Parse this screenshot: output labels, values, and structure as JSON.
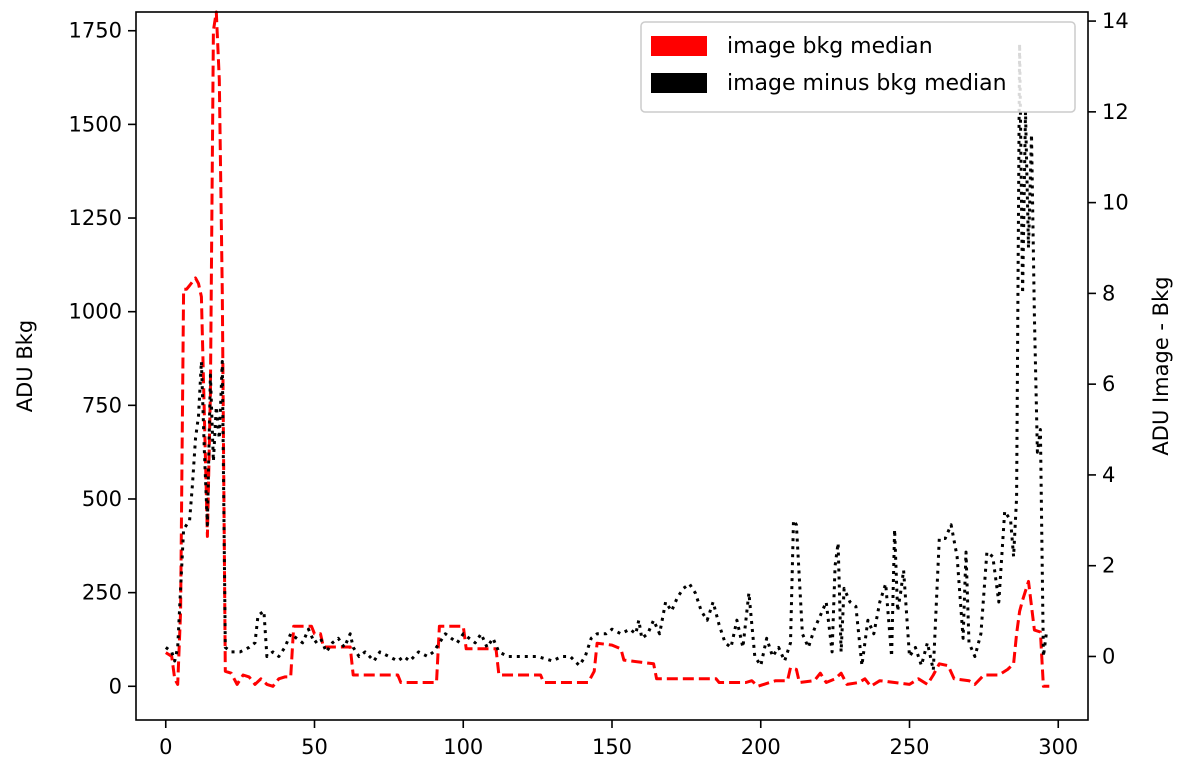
{
  "chart_data": {
    "type": "line",
    "title": "",
    "xlabel": "",
    "xlim": [
      -10,
      310
    ],
    "x_ticks": [
      0,
      50,
      100,
      150,
      200,
      250,
      300
    ],
    "left_axis": {
      "label": "ADU Bkg",
      "ylim": [
        -90,
        1800
      ],
      "ticks": [
        0,
        250,
        500,
        750,
        1000,
        1250,
        1500,
        1750
      ]
    },
    "right_axis": {
      "label": "ADU Image - Bkg",
      "ylim": [
        -1.4,
        14.2
      ],
      "ticks": [
        0,
        2,
        4,
        6,
        8,
        10,
        12,
        14
      ]
    },
    "legend": {
      "placement": "top-right"
    },
    "series": [
      {
        "name": "image bkg median",
        "axis": "left",
        "color": "#ff0000",
        "style": "dashed",
        "points": [
          [
            0,
            90
          ],
          [
            2,
            80
          ],
          [
            3,
            20
          ],
          [
            4,
            5
          ],
          [
            5,
            200
          ],
          [
            6,
            1060
          ],
          [
            7,
            1060
          ],
          [
            8,
            1070
          ],
          [
            9,
            1080
          ],
          [
            10,
            1090
          ],
          [
            11,
            1075
          ],
          [
            12,
            1040
          ],
          [
            13,
            720
          ],
          [
            14,
            400
          ],
          [
            15,
            780
          ],
          [
            16,
            1750
          ],
          [
            17,
            1800
          ],
          [
            18,
            1620
          ],
          [
            19,
            1050
          ],
          [
            20,
            40
          ],
          [
            22,
            35
          ],
          [
            24,
            5
          ],
          [
            26,
            30
          ],
          [
            28,
            25
          ],
          [
            30,
            5
          ],
          [
            32,
            20
          ],
          [
            34,
            5
          ],
          [
            36,
            0
          ],
          [
            38,
            20
          ],
          [
            40,
            25
          ],
          [
            42,
            25
          ],
          [
            43,
            160
          ],
          [
            49,
            160
          ],
          [
            50,
            140
          ],
          [
            52,
            140
          ],
          [
            53,
            105
          ],
          [
            62,
            105
          ],
          [
            63,
            30
          ],
          [
            78,
            30
          ],
          [
            79,
            10
          ],
          [
            91,
            10
          ],
          [
            92,
            160
          ],
          [
            100,
            160
          ],
          [
            101,
            100
          ],
          [
            111,
            100
          ],
          [
            112,
            30
          ],
          [
            126,
            30
          ],
          [
            127,
            10
          ],
          [
            142,
            10
          ],
          [
            144,
            40
          ],
          [
            145,
            115
          ],
          [
            150,
            110
          ],
          [
            153,
            100
          ],
          [
            154,
            70
          ],
          [
            164,
            60
          ],
          [
            165,
            20
          ],
          [
            185,
            20
          ],
          [
            186,
            10
          ],
          [
            195,
            10
          ],
          [
            197,
            15
          ],
          [
            199,
            0
          ],
          [
            201,
            5
          ],
          [
            205,
            15
          ],
          [
            209,
            15
          ],
          [
            210,
            50
          ],
          [
            212,
            45
          ],
          [
            213,
            10
          ],
          [
            218,
            15
          ],
          [
            220,
            35
          ],
          [
            222,
            10
          ],
          [
            225,
            20
          ],
          [
            227,
            35
          ],
          [
            229,
            5
          ],
          [
            233,
            10
          ],
          [
            235,
            20
          ],
          [
            237,
            0
          ],
          [
            240,
            15
          ],
          [
            245,
            10
          ],
          [
            250,
            5
          ],
          [
            253,
            20
          ],
          [
            256,
            5
          ],
          [
            258,
            30
          ],
          [
            260,
            60
          ],
          [
            263,
            55
          ],
          [
            265,
            20
          ],
          [
            270,
            15
          ],
          [
            272,
            5
          ],
          [
            275,
            30
          ],
          [
            280,
            30
          ],
          [
            283,
            45
          ],
          [
            285,
            60
          ],
          [
            286,
            140
          ],
          [
            287,
            200
          ],
          [
            288,
            230
          ],
          [
            290,
            280
          ],
          [
            292,
            150
          ],
          [
            294,
            145
          ],
          [
            295,
            0
          ],
          [
            297,
            0
          ]
        ]
      },
      {
        "name": "image minus bkg median",
        "axis": "right",
        "color": "#000000",
        "style": "dotted",
        "points": [
          [
            0,
            0.2
          ],
          [
            2,
            0.1
          ],
          [
            3,
            -0.1
          ],
          [
            4,
            0.2
          ],
          [
            5,
            1.5
          ],
          [
            6,
            2.8
          ],
          [
            8,
            3.0
          ],
          [
            9,
            3.8
          ],
          [
            10,
            4.8
          ],
          [
            11,
            5.3
          ],
          [
            12,
            6.5
          ],
          [
            13,
            4.5
          ],
          [
            14,
            2.9
          ],
          [
            15,
            6.2
          ],
          [
            16,
            4.3
          ],
          [
            17,
            5.5
          ],
          [
            18,
            4.8
          ],
          [
            19,
            6.5
          ],
          [
            20,
            0.2
          ],
          [
            22,
            0.1
          ],
          [
            25,
            0.1
          ],
          [
            28,
            0.2
          ],
          [
            30,
            0.3
          ],
          [
            31,
            0.9
          ],
          [
            33,
            1.0
          ],
          [
            34,
            0.0
          ],
          [
            36,
            0.1
          ],
          [
            38,
            0.0
          ],
          [
            40,
            0.2
          ],
          [
            42,
            0.5
          ],
          [
            44,
            0.4
          ],
          [
            46,
            0.3
          ],
          [
            48,
            0.6
          ],
          [
            50,
            0.3
          ],
          [
            52,
            0.4
          ],
          [
            54,
            0.1
          ],
          [
            56,
            0.3
          ],
          [
            58,
            0.4
          ],
          [
            60,
            0.2
          ],
          [
            62,
            0.5
          ],
          [
            63,
            0.2
          ],
          [
            65,
            0.0
          ],
          [
            67,
            0.1
          ],
          [
            70,
            -0.1
          ],
          [
            72,
            0.1
          ],
          [
            75,
            0.0
          ],
          [
            78,
            -0.1
          ],
          [
            80,
            0.0
          ],
          [
            82,
            -0.1
          ],
          [
            85,
            0.1
          ],
          [
            88,
            0.0
          ],
          [
            90,
            0.1
          ],
          [
            92,
            0.3
          ],
          [
            94,
            0.5
          ],
          [
            96,
            0.4
          ],
          [
            98,
            0.3
          ],
          [
            100,
            0.5
          ],
          [
            102,
            0.4
          ],
          [
            104,
            0.3
          ],
          [
            106,
            0.5
          ],
          [
            108,
            0.2
          ],
          [
            110,
            0.4
          ],
          [
            112,
            0.1
          ],
          [
            115,
            0.0
          ],
          [
            120,
            0.0
          ],
          [
            125,
            0.0
          ],
          [
            130,
            -0.1
          ],
          [
            133,
            0.0
          ],
          [
            136,
            0.0
          ],
          [
            139,
            -0.2
          ],
          [
            141,
            0.0
          ],
          [
            143,
            0.4
          ],
          [
            145,
            0.5
          ],
          [
            148,
            0.5
          ],
          [
            150,
            0.6
          ],
          [
            153,
            0.5
          ],
          [
            156,
            0.6
          ],
          [
            158,
            0.5
          ],
          [
            159,
            0.8
          ],
          [
            160,
            0.4
          ],
          [
            162,
            0.5
          ],
          [
            164,
            0.8
          ],
          [
            166,
            0.5
          ],
          [
            168,
            1.2
          ],
          [
            170,
            1.0
          ],
          [
            172,
            1.3
          ],
          [
            174,
            1.5
          ],
          [
            176,
            1.6
          ],
          [
            178,
            1.4
          ],
          [
            180,
            1.0
          ],
          [
            182,
            0.8
          ],
          [
            184,
            1.2
          ],
          [
            186,
            0.7
          ],
          [
            188,
            0.3
          ],
          [
            190,
            0.2
          ],
          [
            192,
            0.8
          ],
          [
            194,
            0.2
          ],
          [
            196,
            1.4
          ],
          [
            198,
            0.0
          ],
          [
            200,
            -0.2
          ],
          [
            202,
            0.4
          ],
          [
            204,
            0.0
          ],
          [
            206,
            0.2
          ],
          [
            208,
            -0.1
          ],
          [
            210,
            0.3
          ],
          [
            211,
            3.0
          ],
          [
            212,
            2.9
          ],
          [
            214,
            0.5
          ],
          [
            216,
            0.2
          ],
          [
            218,
            0.6
          ],
          [
            220,
            0.9
          ],
          [
            222,
            1.2
          ],
          [
            224,
            0.1
          ],
          [
            225,
            2.0
          ],
          [
            226,
            2.5
          ],
          [
            227,
            0.1
          ],
          [
            228,
            1.5
          ],
          [
            230,
            1.2
          ],
          [
            232,
            1.1
          ],
          [
            234,
            -0.2
          ],
          [
            236,
            0.8
          ],
          [
            238,
            0.5
          ],
          [
            240,
            1.2
          ],
          [
            242,
            1.6
          ],
          [
            244,
            0.0
          ],
          [
            245,
            2.8
          ],
          [
            246,
            1.0
          ],
          [
            247,
            1.4
          ],
          [
            248,
            1.9
          ],
          [
            250,
            0.0
          ],
          [
            252,
            0.2
          ],
          [
            254,
            -0.2
          ],
          [
            256,
            0.3
          ],
          [
            258,
            -0.3
          ],
          [
            260,
            2.6
          ],
          [
            262,
            2.6
          ],
          [
            264,
            2.9
          ],
          [
            266,
            2.2
          ],
          [
            268,
            0.4
          ],
          [
            269,
            2.3
          ],
          [
            270,
            0.3
          ],
          [
            272,
            0.0
          ],
          [
            274,
            0.5
          ],
          [
            276,
            2.3
          ],
          [
            278,
            2.2
          ],
          [
            280,
            1.2
          ],
          [
            282,
            3.2
          ],
          [
            284,
            3.0
          ],
          [
            285,
            2.2
          ],
          [
            286,
            3.5
          ],
          [
            287,
            13.5
          ],
          [
            288,
            8.0
          ],
          [
            289,
            12.0
          ],
          [
            290,
            9.0
          ],
          [
            291,
            11.5
          ],
          [
            292,
            7.5
          ],
          [
            293,
            4.5
          ],
          [
            294,
            5.0
          ],
          [
            295,
            0.0
          ],
          [
            296,
            0.5
          ],
          [
            297,
            0.5
          ]
        ]
      }
    ]
  }
}
